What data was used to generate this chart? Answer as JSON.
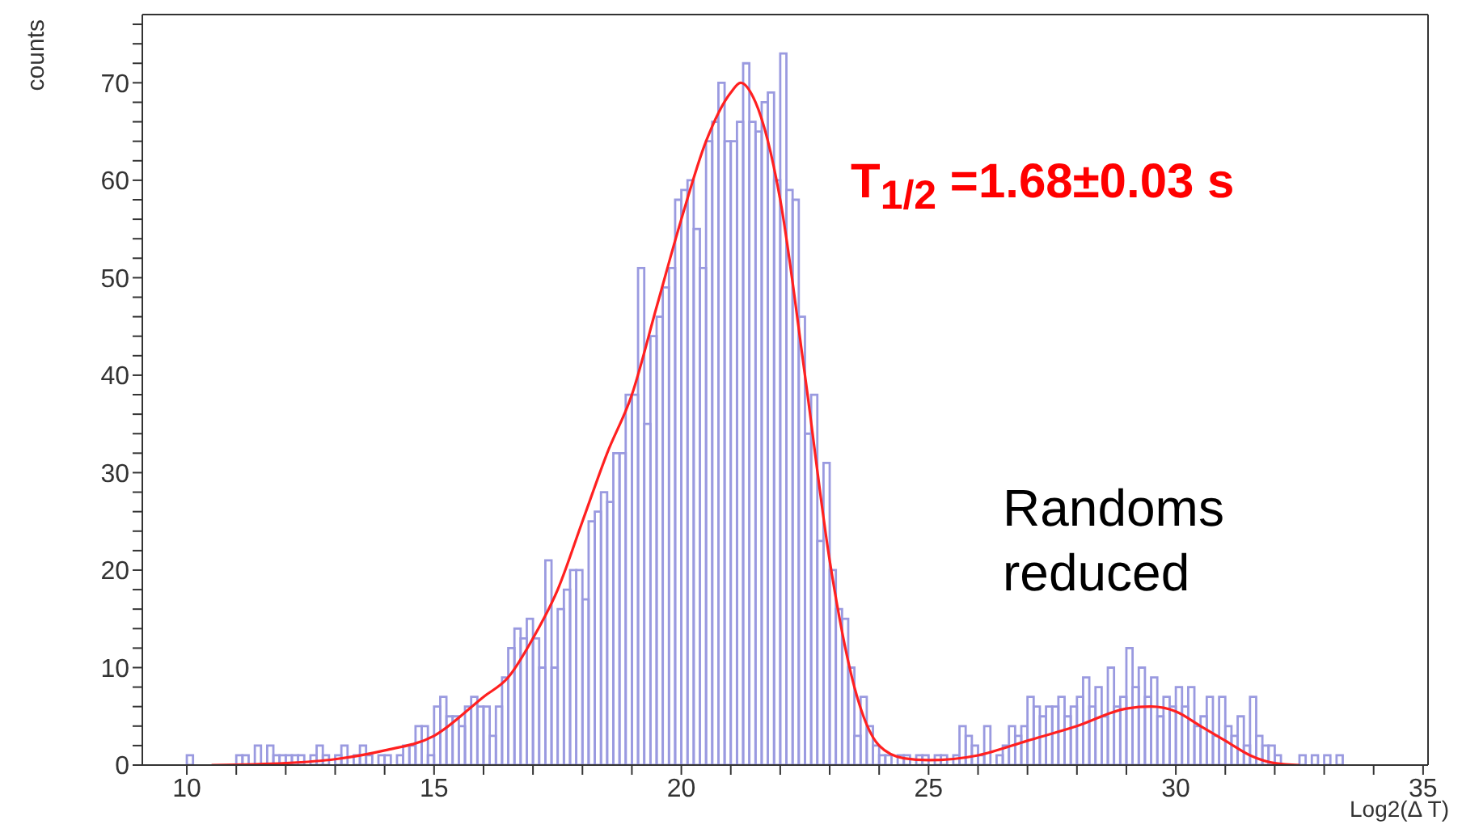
{
  "chart_data": {
    "type": "histogram",
    "xlabel": "Log2(Δ T)",
    "ylabel": "counts",
    "annotations": [
      "T$_{1/2}$ =1.68±0.03 s",
      "Randoms reduced"
    ],
    "xlim": [
      9.1,
      35.1
    ],
    "xticks": [
      10,
      {
        "value": 11,
        "label": null
      },
      {
        "value": 12,
        "label": null
      },
      {
        "value": 13,
        "label": null
      },
      {
        "value": 14,
        "label": null
      },
      15,
      {
        "value": 16,
        "label": null
      },
      {
        "value": 17,
        "label": null
      },
      {
        "value": 18,
        "label": null
      },
      {
        "value": 19,
        "label": null
      },
      20,
      {
        "value": 21,
        "label": null
      },
      {
        "value": 22,
        "label": null
      },
      {
        "value": 23,
        "label": null
      },
      {
        "value": 24,
        "label": null
      },
      25,
      {
        "value": 26,
        "label": null
      },
      {
        "value": 27,
        "label": null
      },
      {
        "value": 28,
        "label": null
      },
      {
        "value": 29,
        "label": null
      },
      30,
      {
        "value": 31,
        "label": null
      },
      {
        "value": 32,
        "label": null
      },
      {
        "value": 33,
        "label": null
      },
      {
        "value": 34,
        "label": null
      },
      35
    ],
    "ylim": [
      0,
      77
    ],
    "yticks": [
      0,
      {
        "value": 2,
        "label": null
      },
      {
        "value": 4,
        "label": null
      },
      {
        "value": 6,
        "label": null
      },
      {
        "value": 8,
        "label": null
      },
      10,
      {
        "value": 12,
        "label": null
      },
      {
        "value": 14,
        "label": null
      },
      {
        "value": 16,
        "label": null
      },
      {
        "value": 18,
        "label": null
      },
      20,
      {
        "value": 22,
        "label": null
      },
      {
        "value": 24,
        "label": null
      },
      {
        "value": 26,
        "label": null
      },
      {
        "value": 28,
        "label": null
      },
      30,
      {
        "value": 32,
        "label": null
      },
      {
        "value": 34,
        "label": null
      },
      {
        "value": 36,
        "label": null
      },
      {
        "value": 38,
        "label": null
      },
      40,
      {
        "value": 42,
        "label": null
      },
      {
        "value": 44,
        "label": null
      },
      {
        "value": 46,
        "label": null
      },
      {
        "value": 48,
        "label": null
      },
      50,
      {
        "value": 52,
        "label": null
      },
      {
        "value": 54,
        "label": null
      },
      {
        "value": 56,
        "label": null
      },
      {
        "value": 58,
        "label": null
      },
      60,
      {
        "value": 62,
        "label": null
      },
      {
        "value": 64,
        "label": null
      },
      {
        "value": 66,
        "label": null
      },
      {
        "value": 68,
        "label": null
      },
      70,
      {
        "value": 72,
        "label": null
      },
      {
        "value": 74,
        "label": null
      },
      {
        "value": 76,
        "label": null
      }
    ],
    "series": [
      {
        "color": "#9a9ae0",
        "bins": [
          10,
          10.125,
          10.25,
          10.375,
          10.5,
          10.625,
          10.75,
          10.875,
          11,
          11.125,
          11.25,
          11.375,
          11.5,
          11.625,
          11.75,
          11.875,
          12,
          12.125,
          12.25,
          12.375,
          12.5,
          12.625,
          12.75,
          12.875,
          13,
          13.125,
          13.25,
          13.375,
          13.5,
          13.625,
          13.75,
          13.875,
          14,
          14.125,
          14.25,
          14.375,
          14.5,
          14.625,
          14.75,
          14.875,
          15,
          15.125,
          15.25,
          15.375,
          15.5,
          15.625,
          15.75,
          15.875,
          16,
          16.125,
          16.25,
          16.375,
          16.5,
          16.625,
          16.75,
          16.875,
          17,
          17.125,
          17.25,
          17.375,
          17.5,
          17.625,
          17.75,
          17.875,
          18,
          18.125,
          18.25,
          18.375,
          18.5,
          18.625,
          18.75,
          18.875,
          19,
          19.125,
          19.25,
          19.375,
          19.5,
          19.625,
          19.75,
          19.875,
          20,
          20.125,
          20.25,
          20.375,
          20.5,
          20.625,
          20.75,
          20.875,
          21,
          21.125,
          21.25,
          21.375,
          21.5,
          21.625,
          21.75,
          21.875,
          22,
          22.125,
          22.25,
          22.375,
          22.5,
          22.625,
          22.75,
          22.875,
          23,
          23.125,
          23.25,
          23.375,
          23.5,
          23.625,
          23.75,
          23.875,
          24,
          24.125,
          24.25,
          24.375,
          24.5,
          24.625,
          24.75,
          24.875,
          25,
          25.125,
          25.25,
          25.375,
          25.5,
          25.625,
          25.75,
          25.875,
          26,
          26.125,
          26.25,
          26.375,
          26.5,
          26.625,
          26.75,
          26.875,
          27,
          27.125,
          27.25,
          27.375,
          27.5,
          27.625,
          27.75,
          27.875,
          28,
          28.125,
          28.25,
          28.375,
          28.5,
          28.625,
          28.75,
          28.875,
          29,
          29.125,
          29.25,
          29.375,
          29.5,
          29.625,
          29.75,
          29.875,
          30,
          30.125,
          30.25,
          30.375,
          30.5,
          30.625,
          30.75,
          30.875,
          31,
          31.125,
          31.25,
          31.375,
          31.5,
          31.625,
          31.75,
          31.875,
          32,
          32.125,
          32.25,
          32.375,
          32.5,
          32.625,
          32.75,
          32.875,
          33,
          33.125,
          33.25,
          33.375,
          33.5,
          33.625,
          33.75,
          33.875,
          34
        ],
        "values": [
          1,
          0,
          0,
          0,
          0,
          0,
          0,
          0,
          1,
          1,
          0,
          2,
          0,
          2,
          1,
          1,
          1,
          1,
          1,
          0,
          1,
          2,
          1,
          0,
          1,
          2,
          0,
          1,
          2,
          1,
          0,
          1,
          1,
          0,
          1,
          2,
          2,
          4,
          4,
          1,
          6,
          7,
          5,
          5,
          4,
          6,
          7,
          6,
          6,
          3,
          6,
          9,
          12,
          14,
          13,
          15,
          13,
          10,
          21,
          10,
          16,
          18,
          20,
          20,
          17,
          25,
          26,
          28,
          27,
          32,
          32,
          38,
          38,
          51,
          35,
          44,
          46,
          49,
          51,
          58,
          59,
          60,
          55,
          51,
          64,
          66,
          70,
          64,
          64,
          66,
          72,
          66,
          65,
          68,
          69,
          60,
          73,
          59,
          58,
          46,
          34,
          38,
          23,
          31,
          20,
          16,
          15,
          10,
          3,
          7,
          4,
          2,
          1,
          1,
          0,
          1,
          1,
          0,
          1,
          1,
          0,
          1,
          1,
          0,
          1,
          4,
          3,
          2,
          1,
          4,
          0,
          1,
          2,
          4,
          3,
          4,
          7,
          6,
          5,
          6,
          6,
          7,
          5,
          6,
          7,
          9,
          6,
          8,
          5,
          10,
          6,
          7,
          12,
          8,
          10,
          7,
          9,
          5,
          7,
          6,
          8,
          6,
          8,
          4,
          5,
          7,
          3,
          7,
          4,
          3,
          5,
          2,
          7,
          3,
          2,
          2,
          1,
          0,
          0,
          0,
          1,
          0,
          1,
          0,
          1,
          0,
          1,
          0,
          0,
          0,
          0,
          0
        ]
      },
      {
        "type": "line",
        "color": "#ff2020",
        "x": [
          10.5,
          12,
          13,
          14,
          15,
          16,
          16.5,
          17,
          17.5,
          18,
          18.5,
          19,
          19.5,
          20,
          20.5,
          21,
          21.2,
          21.5,
          22,
          22.5,
          23,
          23.5,
          24,
          24.5,
          25,
          26,
          27,
          28,
          29,
          29.5,
          30,
          30.5,
          31,
          31.5,
          32,
          32.5
        ],
        "values": [
          0,
          0.2,
          0.6,
          1.5,
          3,
          7,
          9,
          13,
          18,
          25,
          32,
          38,
          47,
          56,
          64,
          69,
          70,
          68,
          58,
          40,
          21,
          8,
          2,
          0.7,
          0.5,
          1,
          2.5,
          4,
          5.8,
          6,
          5.5,
          4,
          2.5,
          1,
          0.2,
          0
        ]
      }
    ]
  }
}
